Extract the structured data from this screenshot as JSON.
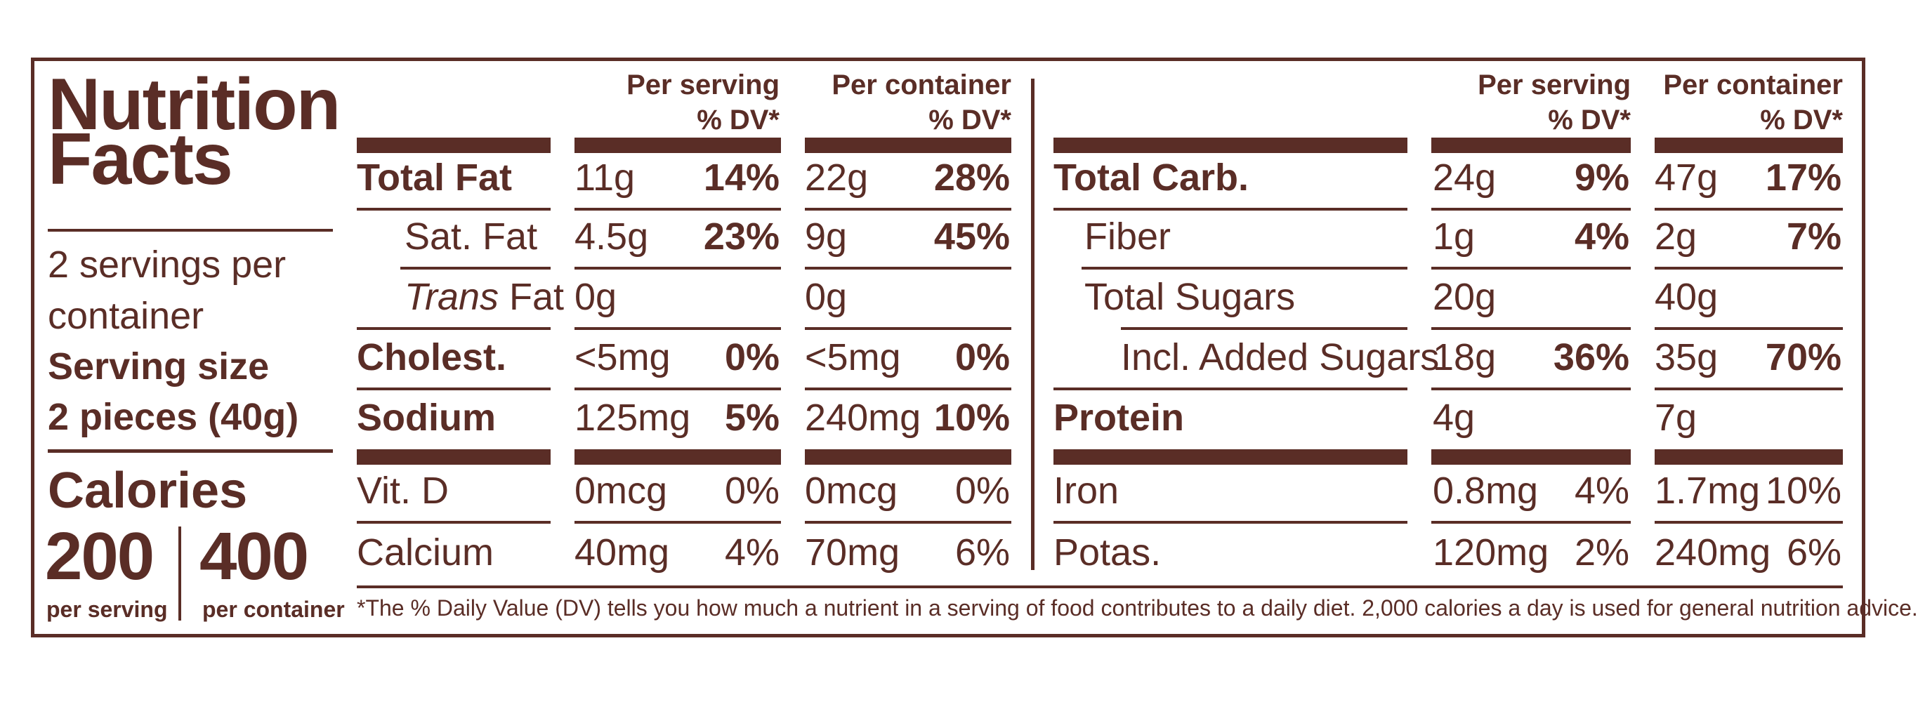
{
  "label": {
    "title_line1": "Nutrition",
    "title_line2": "Facts",
    "servings_line1": "2 servings per",
    "servings_line2": "container",
    "serving_size_label": "Serving size",
    "serving_size_value": "2 pieces (40g)",
    "calories_label": "Calories",
    "calories_per_serving": "200",
    "calories_per_container": "400",
    "per_serving_label": "per serving",
    "per_container_label": "per container"
  },
  "headers": {
    "per_serving_line1": "Per serving",
    "per_serving_line2": "% DV*",
    "per_container_line1": "Per container",
    "per_container_line2": "% DV*"
  },
  "left_rows": [
    {
      "name": "Total Fat",
      "serving_amt": "11g",
      "serving_dv": "14%",
      "container_amt": "22g",
      "container_dv": "28%"
    },
    {
      "name": "Sat. Fat",
      "serving_amt": "4.5g",
      "serving_dv": "23%",
      "container_amt": "9g",
      "container_dv": "45%"
    },
    {
      "name_italic": "Trans",
      "name_rest": " Fat",
      "serving_amt": "0g",
      "serving_dv": "",
      "container_amt": "0g",
      "container_dv": ""
    },
    {
      "name": "Cholest.",
      "serving_amt": "<5mg",
      "serving_dv": "0%",
      "container_amt": "<5mg",
      "container_dv": "0%"
    },
    {
      "name": "Sodium",
      "serving_amt": "125mg",
      "serving_dv": "5%",
      "container_amt": "240mg",
      "container_dv": "10%"
    },
    {
      "name": "Vit. D",
      "serving_amt": "0mcg",
      "serving_dv": "0%",
      "container_amt": "0mcg",
      "container_dv": "0%"
    },
    {
      "name": "Calcium",
      "serving_amt": "40mg",
      "serving_dv": "4%",
      "container_amt": "70mg",
      "container_dv": "6%"
    }
  ],
  "right_rows": [
    {
      "name": "Total Carb.",
      "serving_amt": "24g",
      "serving_dv": "9%",
      "container_amt": "47g",
      "container_dv": "17%"
    },
    {
      "name": "Fiber",
      "serving_amt": "1g",
      "serving_dv": "4%",
      "container_amt": "2g",
      "container_dv": "7%"
    },
    {
      "name": "Total Sugars",
      "serving_amt": "20g",
      "serving_dv": "",
      "container_amt": "40g",
      "container_dv": ""
    },
    {
      "name": "Incl. Added Sugars",
      "serving_amt": "18g",
      "serving_dv": "36%",
      "container_amt": "35g",
      "container_dv": "70%"
    },
    {
      "name": "Protein",
      "serving_amt": "4g",
      "serving_dv": "",
      "container_amt": "7g",
      "container_dv": ""
    },
    {
      "name": "Iron",
      "serving_amt": "0.8mg",
      "serving_dv": "4%",
      "container_amt": "1.7mg",
      "container_dv": "10%"
    },
    {
      "name": "Potas.",
      "serving_amt": "120mg",
      "serving_dv": "2%",
      "container_amt": "240mg",
      "container_dv": "6%"
    }
  ],
  "footnote": "*The % Daily Value (DV) tells you how much a nutrient in a serving of food contributes to a daily diet. 2,000 calories a day is used for general nutrition advice.",
  "colors": {
    "ink": "#5a2d26",
    "background": "#ffffff"
  }
}
